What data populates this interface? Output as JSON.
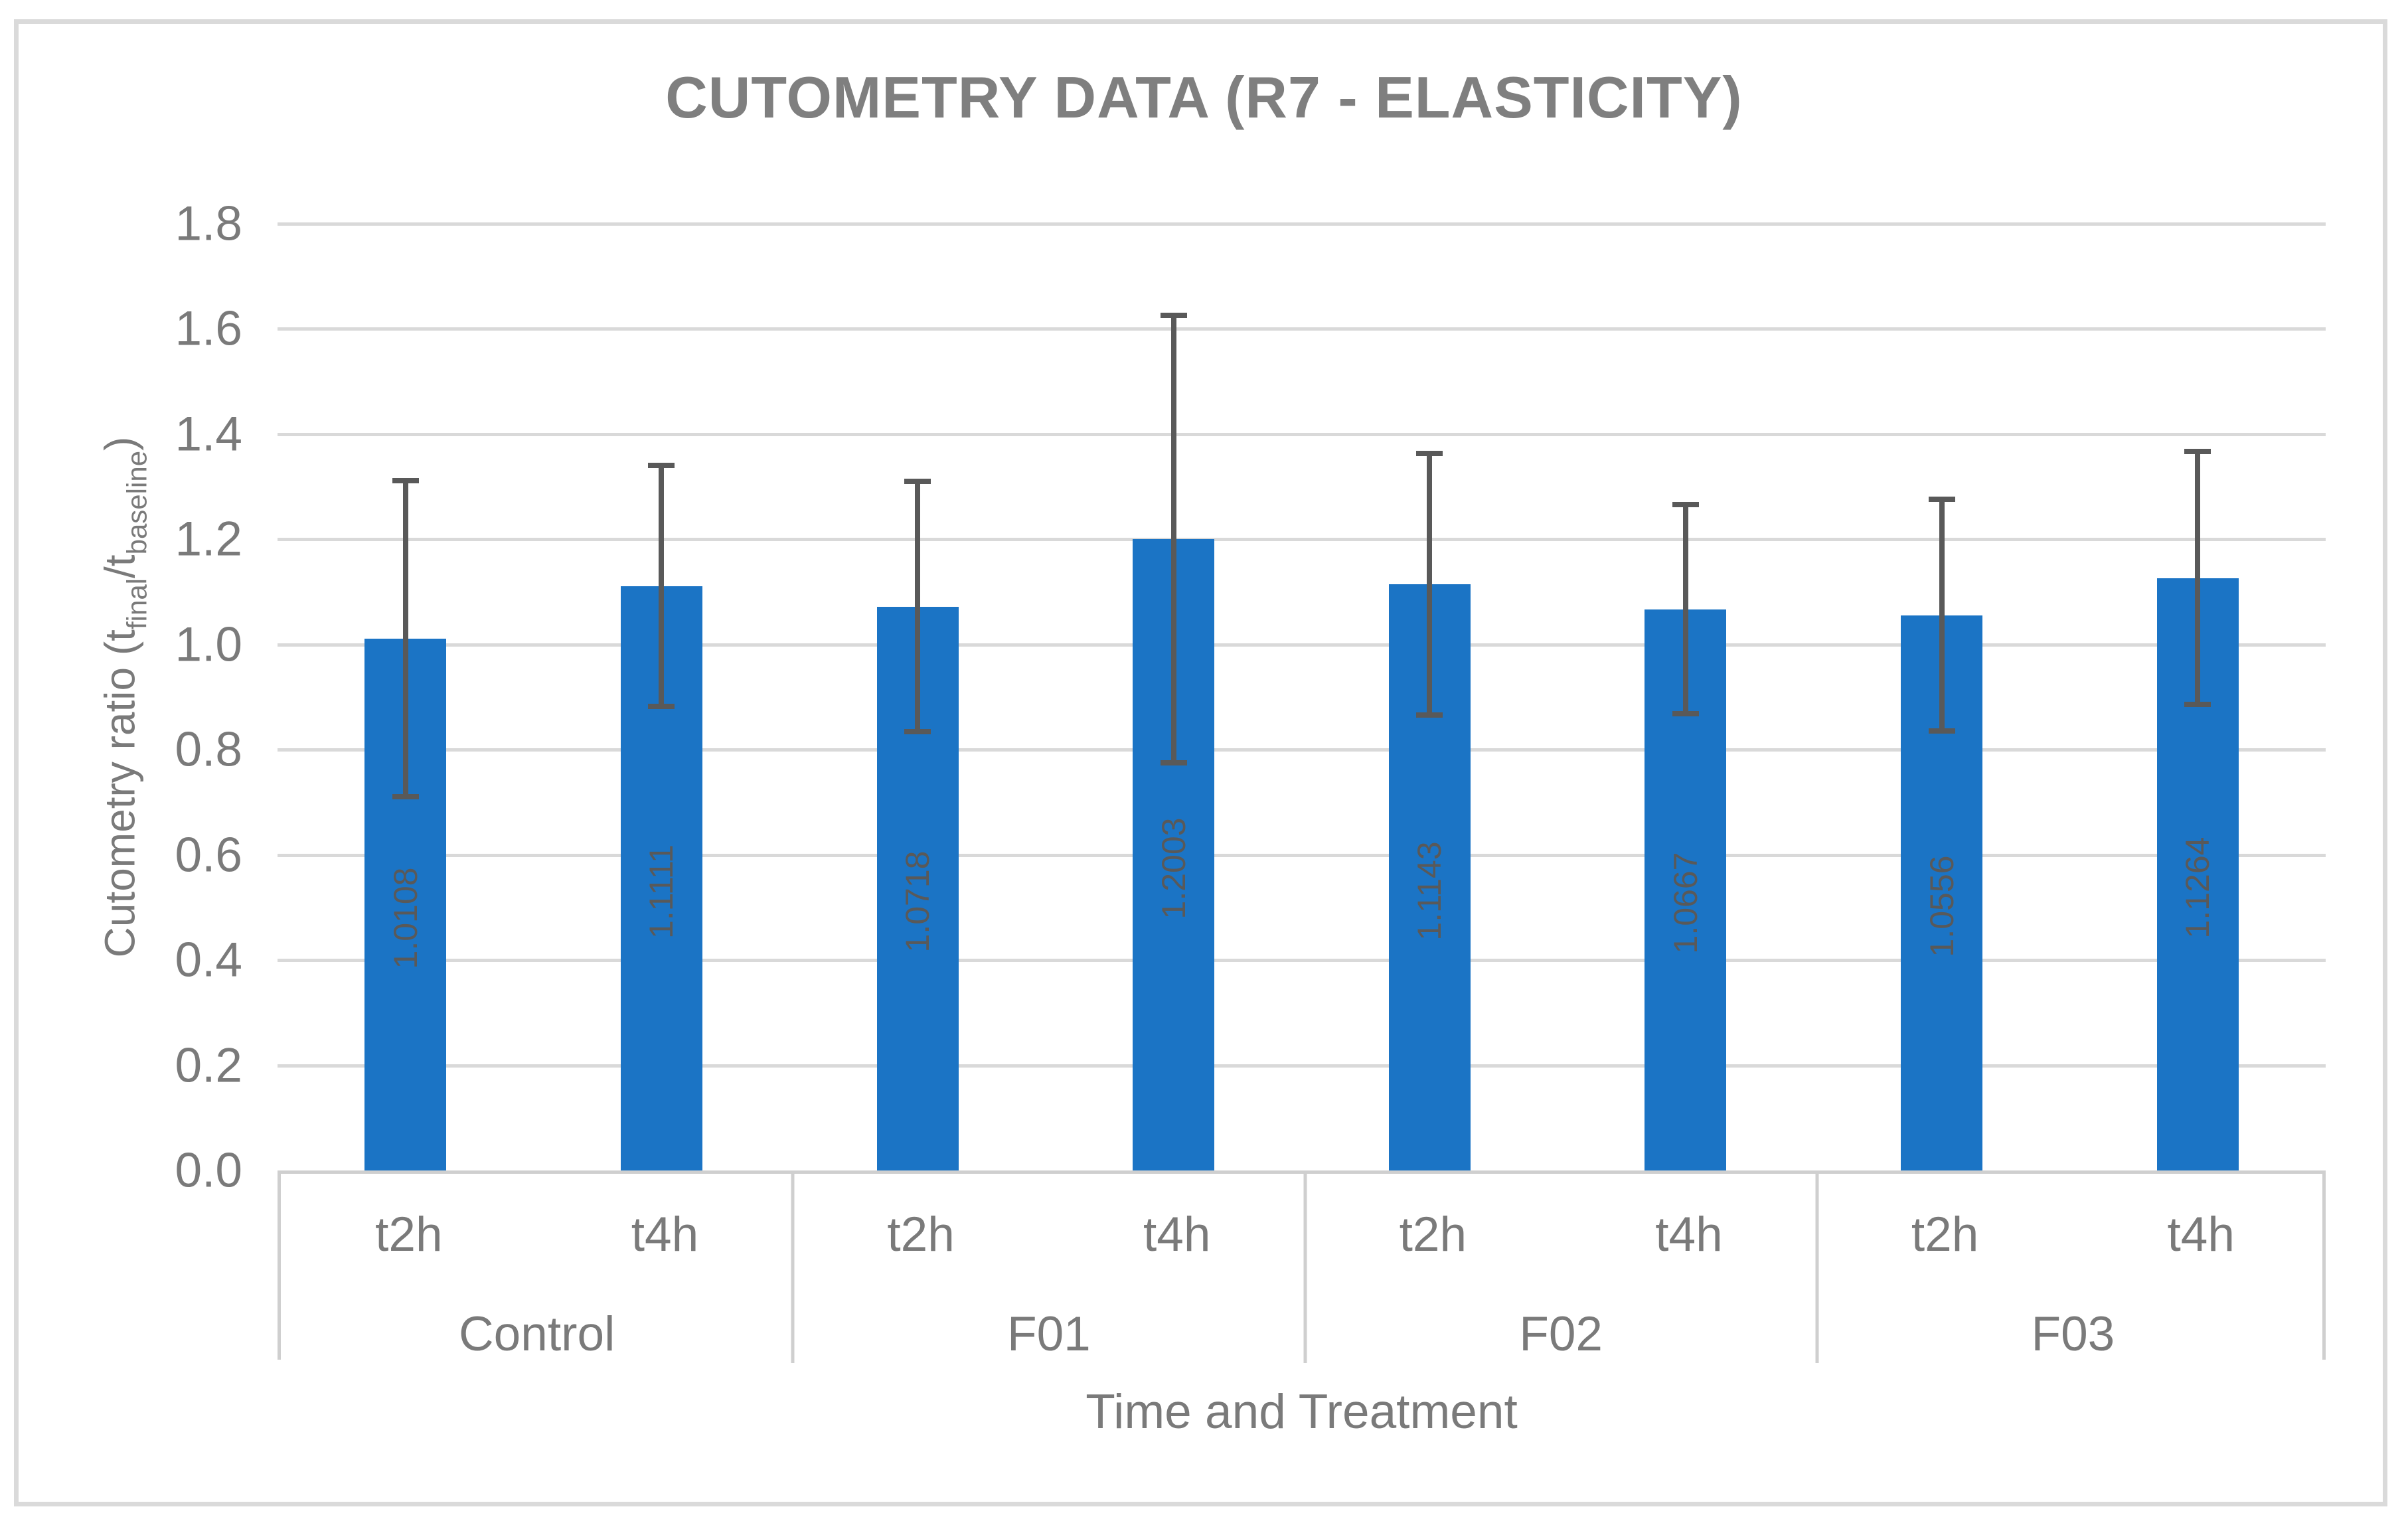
{
  "chart_data": {
    "type": "bar",
    "title": "CUTOMETRY DATA (R7 - ELASTICITY)",
    "xlabel": "Time and Treatment",
    "ylabel_plain": "Cutometry ratio (t_final/t_baseline)",
    "ylabel_parts": [
      {
        "text": "Cutometry ratio (t"
      },
      {
        "sub": "final"
      },
      {
        "text": "/t"
      },
      {
        "sub": "baseline"
      },
      {
        "text": ")"
      }
    ],
    "ylim": [
      0.0,
      1.8
    ],
    "ytick_labels": [
      "0.0",
      "0.2",
      "0.4",
      "0.6",
      "0.8",
      "1.0",
      "1.2",
      "1.4",
      "1.6",
      "1.8"
    ],
    "grid": true,
    "legend": "none",
    "groups": [
      "Control",
      "F01",
      "F02",
      "F03"
    ],
    "times": [
      "t2h",
      "t4h"
    ],
    "bars": [
      {
        "group": "Control",
        "time": "t2h",
        "value": 1.0108,
        "label": "1.0108",
        "error_top": 1.317,
        "error_bottom": 0.705
      },
      {
        "group": "Control",
        "time": "t4h",
        "value": 1.1111,
        "label": "1.1111",
        "error_top": 1.346,
        "error_bottom": 0.877
      },
      {
        "group": "F01",
        "time": "t2h",
        "value": 1.0718,
        "label": "1.0718",
        "error_top": 1.315,
        "error_bottom": 0.829
      },
      {
        "group": "F01",
        "time": "t4h",
        "value": 1.2003,
        "label": "1.2003",
        "error_top": 1.631,
        "error_bottom": 0.77
      },
      {
        "group": "F02",
        "time": "t2h",
        "value": 1.1143,
        "label": "1.1143",
        "error_top": 1.368,
        "error_bottom": 0.861
      },
      {
        "group": "F02",
        "time": "t4h",
        "value": 1.0667,
        "label": "1.0667",
        "error_top": 1.271,
        "error_bottom": 0.863
      },
      {
        "group": "F03",
        "time": "t2h",
        "value": 1.0556,
        "label": "1.0556",
        "error_top": 1.281,
        "error_bottom": 0.831
      },
      {
        "group": "F03",
        "time": "t4h",
        "value": 1.1264,
        "label": "1.1264",
        "error_top": 1.372,
        "error_bottom": 0.881
      }
    ],
    "colors": {
      "bar_fill": "#1b74c5",
      "error_bar": "#595959",
      "value_label": "#595959",
      "axis_text": "#7a7a7a",
      "title_text": "#7f7f7f",
      "gridline": "#d9d9d9",
      "frame": "#cfcfcf",
      "outer_border": "#dadada"
    }
  }
}
